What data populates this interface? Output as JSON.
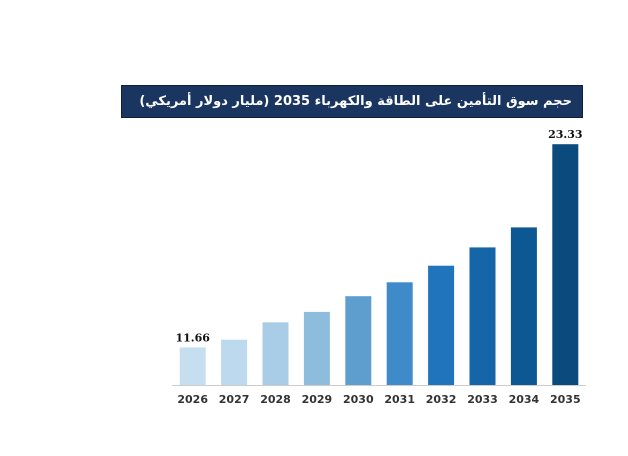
{
  "chart_data": {
    "type": "bar",
    "title": "حجم سوق التأمين على الطاقة والكهرباء 2035 (مليار دولار أمريكي)",
    "categories": [
      "2026",
      "2027",
      "2028",
      "2029",
      "2030",
      "2031",
      "2032",
      "2033",
      "2034",
      "2035"
    ],
    "values": [
      11.66,
      12.1,
      13.1,
      13.7,
      14.6,
      15.4,
      16.35,
      17.4,
      18.55,
      23.33
    ],
    "data_labels": {
      "0": "11.66",
      "9": "23.33"
    },
    "xlabel": "",
    "ylabel": "",
    "ylim": [
      9.5,
      23.8
    ],
    "grid": false,
    "legend": "none",
    "colors": [
      "#c6dff0",
      "#bcd9ee",
      "#a9cde6",
      "#8dbcdd",
      "#5e9ecf",
      "#3f8bc9",
      "#1f74bc",
      "#1566a8",
      "#0d5893",
      "#0a4a7d"
    ],
    "title_bg_color": "#1a3560",
    "axis_color": "#cccccc"
  }
}
